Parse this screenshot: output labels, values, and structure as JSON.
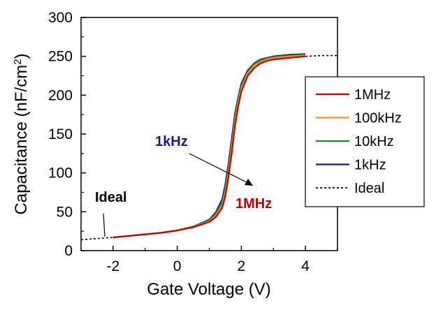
{
  "chart_data": {
    "type": "line",
    "xlabel": "Gate Voltage (V)",
    "ylabel": "Capacitance (nF/cm²)",
    "xlim": [
      -3,
      5
    ],
    "ylim": [
      0,
      300
    ],
    "xticks": [
      -2,
      0,
      2,
      4
    ],
    "xtick_labels": [
      "-2",
      "0",
      "2",
      "4"
    ],
    "yticks": [
      0,
      50,
      100,
      150,
      200,
      250,
      300
    ],
    "ytick_labels": [
      "0",
      "50",
      "100",
      "150",
      "200",
      "250",
      "300"
    ],
    "grid": false,
    "legend_position": "right",
    "series": [
      {
        "name": "1MHz",
        "color": "#c00000",
        "style": "solid",
        "x": [
          -2.0,
          -1.5,
          -1.0,
          -0.5,
          0.0,
          0.5,
          1.0,
          1.2,
          1.4,
          1.5,
          1.6,
          1.7,
          1.8,
          1.9,
          2.0,
          2.2,
          2.4,
          2.6,
          2.8,
          3.0,
          3.5,
          4.0
        ],
        "y": [
          17,
          19,
          21,
          23,
          26,
          30,
          37,
          43,
          55,
          70,
          95,
          125,
          160,
          185,
          205,
          225,
          235,
          241,
          244,
          246,
          248,
          250
        ]
      },
      {
        "name": "100kHz",
        "color": "#ff8c1a",
        "style": "solid",
        "x": [
          -2.0,
          -1.5,
          -1.0,
          -0.5,
          0.0,
          0.5,
          1.0,
          1.2,
          1.4,
          1.5,
          1.6,
          1.7,
          1.8,
          1.9,
          2.0,
          2.2,
          2.4,
          2.6,
          2.8,
          3.0,
          3.5,
          4.0
        ],
        "y": [
          17,
          19,
          21,
          23,
          26,
          30,
          38,
          45,
          58,
          75,
          100,
          132,
          166,
          190,
          209,
          228,
          238,
          243,
          246,
          248,
          250,
          251
        ]
      },
      {
        "name": "10kHz",
        "color": "#1f8c1f",
        "style": "solid",
        "x": [
          -2.0,
          -1.5,
          -1.0,
          -0.5,
          0.0,
          0.5,
          1.0,
          1.2,
          1.4,
          1.5,
          1.6,
          1.7,
          1.8,
          1.9,
          2.0,
          2.2,
          2.4,
          2.6,
          2.8,
          3.0,
          3.5,
          4.0
        ],
        "y": [
          17,
          19,
          21,
          23,
          26,
          31,
          39,
          47,
          62,
          80,
          106,
          138,
          171,
          194,
          212,
          230,
          240,
          245,
          247,
          249,
          251,
          252
        ]
      },
      {
        "name": "1kHz",
        "color": "#1a1a8c",
        "style": "solid",
        "x": [
          -2.0,
          -1.5,
          -1.0,
          -0.5,
          0.0,
          0.5,
          1.0,
          1.2,
          1.4,
          1.5,
          1.6,
          1.7,
          1.8,
          1.9,
          2.0,
          2.2,
          2.4,
          2.6,
          2.8,
          3.0,
          3.5,
          4.0
        ],
        "y": [
          17,
          19,
          21,
          23,
          26,
          31,
          40,
          49,
          66,
          85,
          112,
          144,
          176,
          197,
          215,
          232,
          241,
          246,
          248,
          250,
          252,
          253
        ]
      },
      {
        "name": "Ideal",
        "color": "#000000",
        "style": "dashed",
        "x": [
          -3.0,
          -2.5,
          -2.0,
          -1.5,
          -1.0,
          -0.5,
          0.0,
          0.5,
          1.0,
          1.2,
          1.4,
          1.5,
          1.6,
          1.7,
          1.8,
          1.9,
          2.0,
          2.2,
          2.4,
          2.6,
          2.8,
          3.0,
          3.5,
          4.0,
          4.5,
          5.0
        ],
        "y": [
          14,
          15.5,
          17,
          19,
          21,
          23,
          26,
          30,
          37,
          43,
          55,
          70,
          95,
          125,
          160,
          185,
          205,
          225,
          235,
          241,
          244,
          246,
          248,
          250,
          251,
          251
        ]
      }
    ],
    "annotations": {
      "ideal_label": "Ideal",
      "low_freq_label": "1kHz",
      "high_freq_label": "1MHz",
      "low_freq_color": "#1a1a8c",
      "high_freq_color": "#c00000"
    }
  }
}
